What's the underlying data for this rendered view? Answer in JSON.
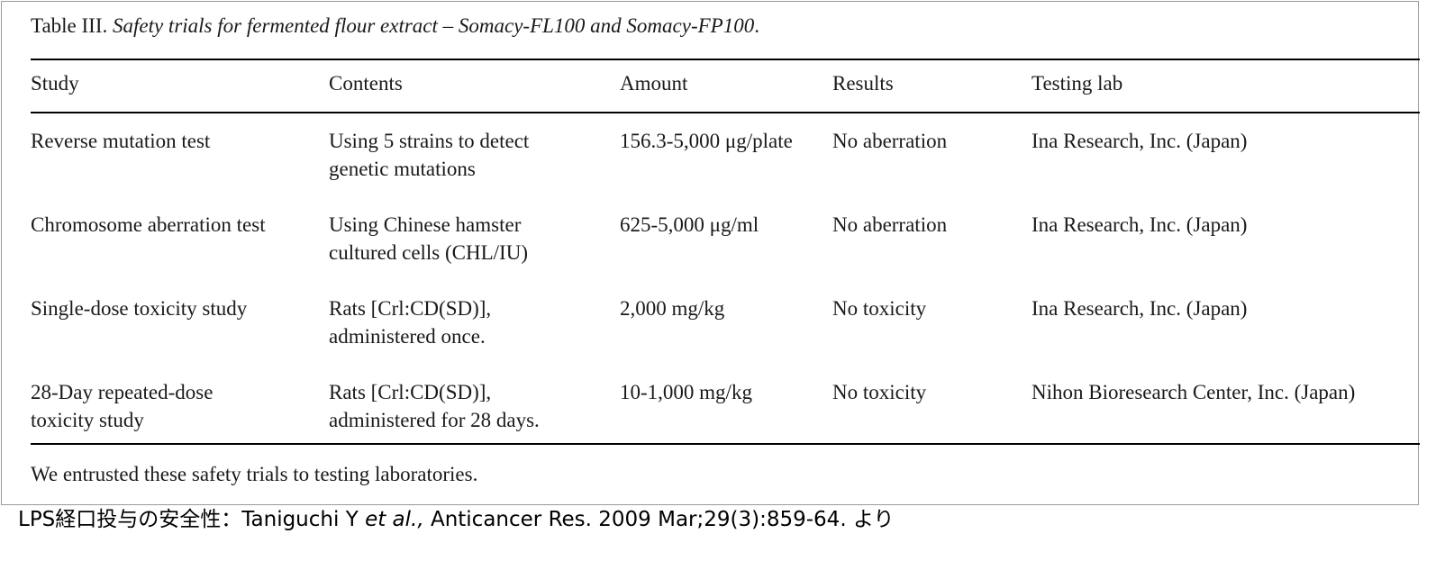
{
  "table": {
    "title_prefix": "Table III. ",
    "title_italic": "Safety trials for fermented flour extract – Somacy-FL100 and Somacy-FP100",
    "title_suffix": ".",
    "headers": [
      "Study",
      "Contents",
      "Amount",
      "Results",
      "Testing lab"
    ],
    "rows": [
      {
        "study": [
          "Reverse mutation test"
        ],
        "contents": [
          "Using 5 strains to detect",
          "genetic mutations"
        ],
        "amount": "156.3-5,000 μg/plate",
        "results": "No aberration",
        "lab": "Ina Research, Inc. (Japan)"
      },
      {
        "study": [
          "Chromosome aberration test"
        ],
        "contents": [
          "Using Chinese hamster",
          "cultured cells (CHL/IU)"
        ],
        "amount": "625-5,000 μg/ml",
        "results": "No aberration",
        "lab": "Ina Research, Inc. (Japan)"
      },
      {
        "study": [
          "Single-dose toxicity study"
        ],
        "contents": [
          "Rats [Crl:CD(SD)],",
          "administered once."
        ],
        "amount": "2,000 mg/kg",
        "results": "No toxicity",
        "lab": "Ina Research, Inc. (Japan)"
      },
      {
        "study": [
          "28-Day repeated-dose",
          "toxicity study"
        ],
        "contents": [
          "Rats [Crl:CD(SD)],",
          "administered for 28 days."
        ],
        "amount": "10-1,000 mg/kg",
        "results": "No toxicity",
        "lab": "Nihon Bioresearch Center, Inc. (Japan)"
      }
    ],
    "footnote": "We entrusted these safety trials to testing laboratories."
  },
  "caption": {
    "lead": "LPS経口投与の安全性：Taniguchi Y ",
    "italic": "et al.,",
    "tail": " Anticancer Res. 2009 Mar;29(3):859-64. より"
  }
}
